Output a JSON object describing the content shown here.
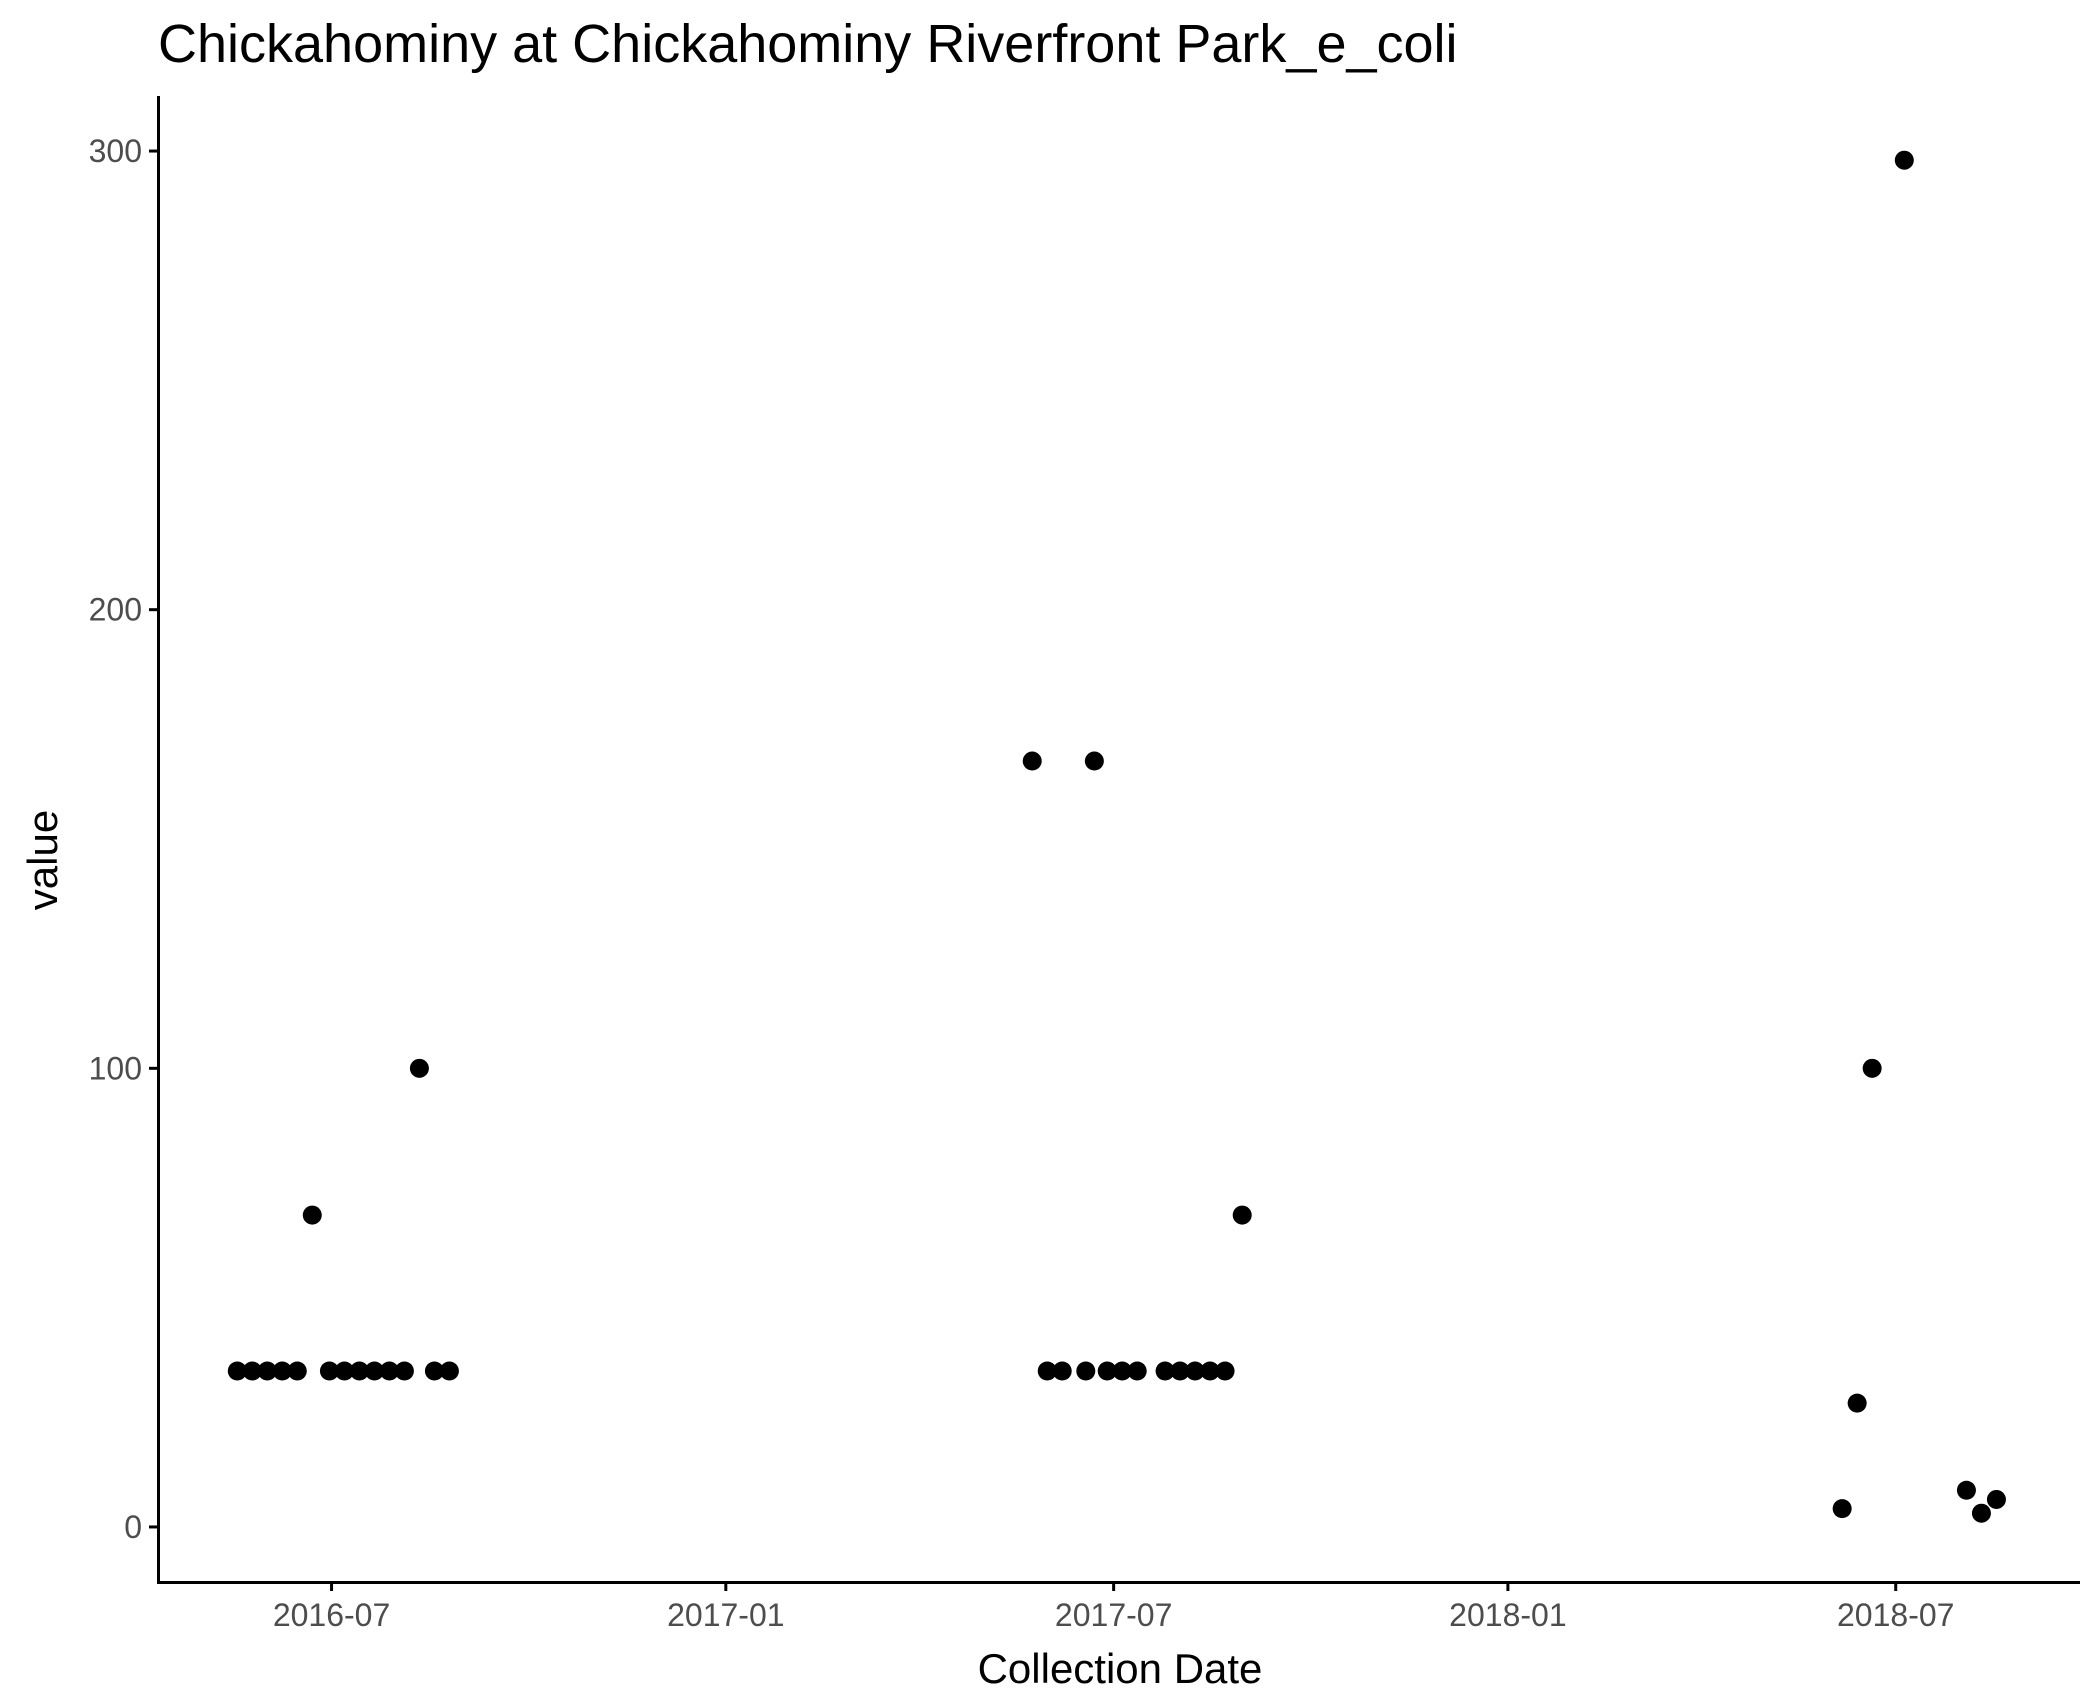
{
  "chart_data": {
    "type": "scatter",
    "title": "Chickahominy at Chickahominy Riverfront Park_e_coli",
    "xlabel": "Collection Date",
    "ylabel": "value",
    "x_ticks": [
      "2016-07",
      "2017-01",
      "2017-07",
      "2018-01",
      "2018-07"
    ],
    "y_ticks": [
      0,
      100,
      200,
      300
    ],
    "xlim": [
      "2016-04-11",
      "2018-09-25"
    ],
    "ylim": [
      -12,
      312
    ],
    "grid": false,
    "point_color": "#000000",
    "points": [
      {
        "x": "2016-05-18",
        "y": 34
      },
      {
        "x": "2016-05-25",
        "y": 34
      },
      {
        "x": "2016-06-01",
        "y": 34
      },
      {
        "x": "2016-06-08",
        "y": 34
      },
      {
        "x": "2016-06-15",
        "y": 34
      },
      {
        "x": "2016-06-22",
        "y": 68
      },
      {
        "x": "2016-06-30",
        "y": 34
      },
      {
        "x": "2016-07-07",
        "y": 34
      },
      {
        "x": "2016-07-14",
        "y": 34
      },
      {
        "x": "2016-07-21",
        "y": 34
      },
      {
        "x": "2016-07-28",
        "y": 34
      },
      {
        "x": "2016-08-04",
        "y": 34
      },
      {
        "x": "2016-08-11",
        "y": 100
      },
      {
        "x": "2016-08-18",
        "y": 34
      },
      {
        "x": "2016-08-25",
        "y": 34
      },
      {
        "x": "2017-05-24",
        "y": 167
      },
      {
        "x": "2017-05-31",
        "y": 34
      },
      {
        "x": "2017-06-07",
        "y": 34
      },
      {
        "x": "2017-06-18",
        "y": 34
      },
      {
        "x": "2017-06-22",
        "y": 167
      },
      {
        "x": "2017-06-28",
        "y": 34
      },
      {
        "x": "2017-07-05",
        "y": 34
      },
      {
        "x": "2017-07-12",
        "y": 34
      },
      {
        "x": "2017-07-25",
        "y": 34
      },
      {
        "x": "2017-08-01",
        "y": 34
      },
      {
        "x": "2017-08-08",
        "y": 34
      },
      {
        "x": "2017-08-15",
        "y": 34
      },
      {
        "x": "2017-08-22",
        "y": 34
      },
      {
        "x": "2017-08-30",
        "y": 68
      },
      {
        "x": "2018-06-06",
        "y": 4
      },
      {
        "x": "2018-06-13",
        "y": 27
      },
      {
        "x": "2018-06-20",
        "y": 100
      },
      {
        "x": "2018-07-05",
        "y": 298
      },
      {
        "x": "2018-08-03",
        "y": 8
      },
      {
        "x": "2018-08-10",
        "y": 3
      },
      {
        "x": "2018-08-17",
        "y": 6
      }
    ]
  }
}
